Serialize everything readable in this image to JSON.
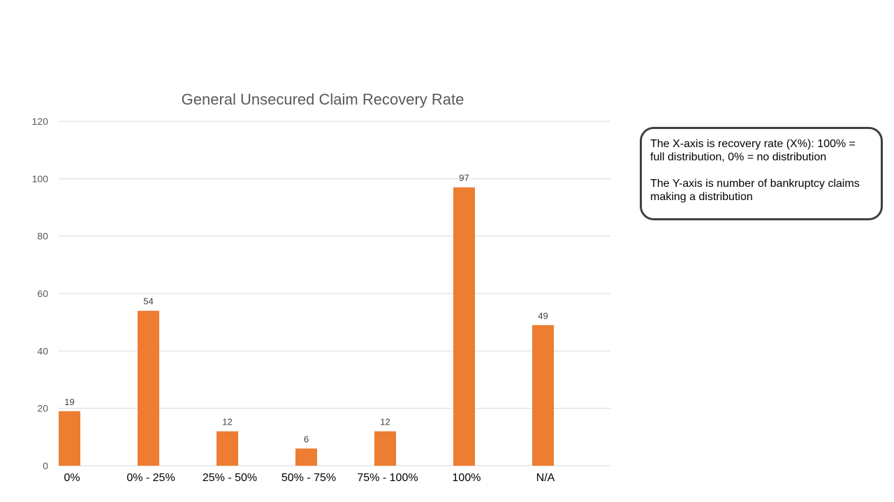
{
  "chart_data": {
    "type": "bar",
    "title": "General Unsecured Claim Recovery Rate",
    "xlabel": "",
    "ylabel": "",
    "categories": [
      "0%",
      "0% - 25%",
      "25% - 50%",
      "50% - 75%",
      "75% - 100%",
      "100%",
      "N/A"
    ],
    "values": [
      19,
      54,
      12,
      6,
      12,
      97,
      49
    ],
    "ylim": [
      0,
      120
    ],
    "yticks": [
      "0",
      "20",
      "40",
      "60",
      "80",
      "100",
      "120"
    ],
    "grid": true,
    "bar_color": "#ED7D31",
    "data_labels": true
  },
  "note": {
    "x_axis_text": "The X-axis is recovery rate (X%): 100% = full distribution, 0% = no distribution",
    "y_axis_text": "The Y-axis is number of bankruptcy claims making a distribution"
  }
}
